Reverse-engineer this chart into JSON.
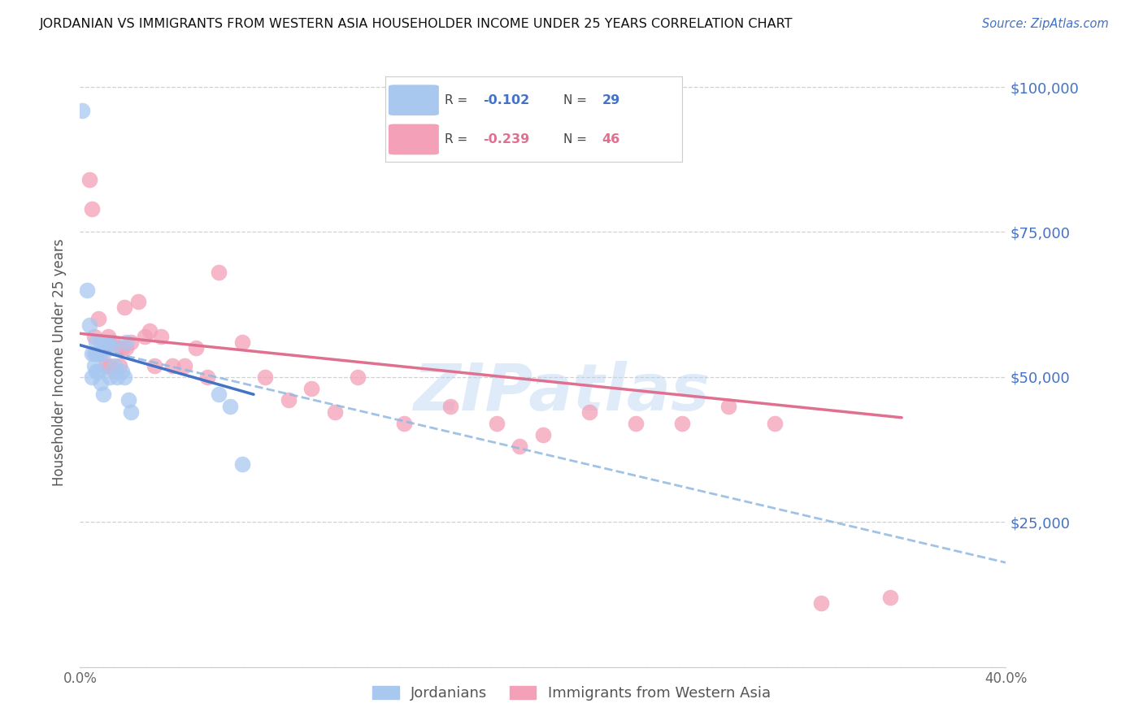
{
  "title": "JORDANIAN VS IMMIGRANTS FROM WESTERN ASIA HOUSEHOLDER INCOME UNDER 25 YEARS CORRELATION CHART",
  "source": "Source: ZipAtlas.com",
  "ylabel": "Householder Income Under 25 years",
  "xlim": [
    0.0,
    0.4
  ],
  "ylim": [
    0,
    105000
  ],
  "yticks": [
    0,
    25000,
    50000,
    75000,
    100000
  ],
  "ytick_labels": [
    "",
    "$25,000",
    "$50,000",
    "$75,000",
    "$100,000"
  ],
  "xticks": [
    0.0,
    0.1,
    0.2,
    0.3,
    0.4
  ],
  "xtick_labels": [
    "0.0%",
    "",
    "",
    "",
    "40.0%"
  ],
  "background_color": "#ffffff",
  "grid_color": "#cccccc",
  "jordanians_color": "#a8c8f0",
  "immigrants_color": "#f4a0b8",
  "jordanians_line_color": "#4472c4",
  "immigrants_line_color": "#e07090",
  "dashed_line_color": "#90b8e0",
  "watermark": "ZIPatlas",
  "jordanians_x": [
    0.001,
    0.003,
    0.004,
    0.005,
    0.005,
    0.006,
    0.006,
    0.007,
    0.007,
    0.008,
    0.008,
    0.009,
    0.009,
    0.01,
    0.01,
    0.011,
    0.012,
    0.013,
    0.014,
    0.015,
    0.016,
    0.018,
    0.019,
    0.02,
    0.021,
    0.022,
    0.06,
    0.065,
    0.07
  ],
  "jordanians_y": [
    96000,
    65000,
    59000,
    54000,
    50000,
    54000,
    52000,
    56000,
    51000,
    54000,
    51000,
    56000,
    49000,
    54000,
    47000,
    56000,
    56000,
    50000,
    55000,
    52000,
    50000,
    51000,
    50000,
    56000,
    46000,
    44000,
    47000,
    45000,
    35000
  ],
  "immigrants_x": [
    0.004,
    0.005,
    0.006,
    0.007,
    0.008,
    0.009,
    0.01,
    0.011,
    0.012,
    0.013,
    0.014,
    0.015,
    0.016,
    0.017,
    0.018,
    0.019,
    0.02,
    0.022,
    0.025,
    0.028,
    0.03,
    0.032,
    0.035,
    0.04,
    0.045,
    0.05,
    0.055,
    0.06,
    0.07,
    0.08,
    0.09,
    0.1,
    0.11,
    0.12,
    0.14,
    0.16,
    0.18,
    0.19,
    0.2,
    0.22,
    0.24,
    0.26,
    0.28,
    0.3,
    0.32,
    0.35
  ],
  "immigrants_y": [
    84000,
    79000,
    57000,
    54000,
    60000,
    54000,
    55000,
    52000,
    57000,
    52000,
    56000,
    51000,
    55000,
    52000,
    55000,
    62000,
    55000,
    56000,
    63000,
    57000,
    58000,
    52000,
    57000,
    52000,
    52000,
    55000,
    50000,
    68000,
    56000,
    50000,
    46000,
    48000,
    44000,
    50000,
    42000,
    45000,
    42000,
    38000,
    40000,
    44000,
    42000,
    42000,
    45000,
    42000,
    11000,
    12000
  ],
  "jordanians_line_x": [
    0.0,
    0.075
  ],
  "jordanians_line_y": [
    55500,
    47000
  ],
  "immigrants_line_x": [
    0.0,
    0.355
  ],
  "immigrants_line_y": [
    57500,
    43000
  ],
  "dashed_line_x": [
    0.0,
    0.4
  ],
  "dashed_line_y": [
    55500,
    18000
  ]
}
